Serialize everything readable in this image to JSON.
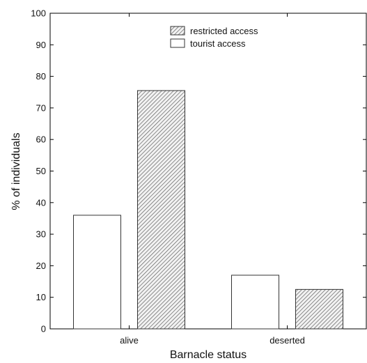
{
  "chart_data": {
    "type": "bar",
    "title": "",
    "xlabel": "Barnacle status",
    "ylabel": "% of individuals",
    "categories": [
      "alive",
      "deserted"
    ],
    "ylim": [
      0,
      100
    ],
    "yticks": [
      "0",
      "10",
      "20",
      "30",
      "40",
      "50",
      "60",
      "70",
      "80",
      "90",
      "100"
    ],
    "grid": false,
    "legend_position": "top-center",
    "series": [
      {
        "name": "tourist access",
        "values": [
          36,
          17
        ],
        "fill": "#ffffff",
        "pattern": "none"
      },
      {
        "name": "restricted access",
        "values": [
          75.5,
          12.5
        ],
        "fill": "#d9d9d9",
        "pattern": "diagonal-hatch"
      }
    ],
    "legend_order": [
      1,
      0
    ]
  }
}
